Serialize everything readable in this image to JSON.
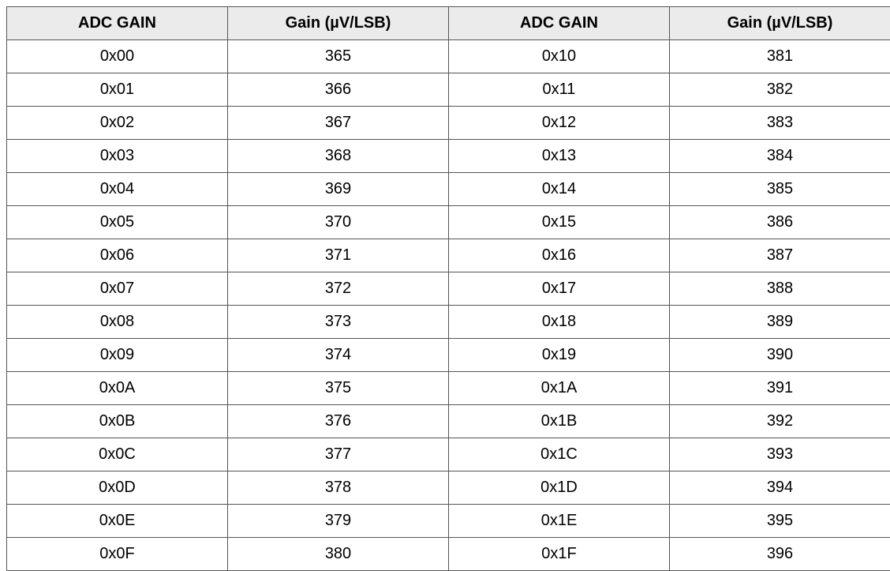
{
  "header_fill": "#ebebeb",
  "headers": [
    "ADC GAIN",
    "Gain (µV/LSB)",
    "ADC GAIN",
    "Gain (µV/LSB)"
  ],
  "rows": [
    [
      "0x00",
      "365",
      "0x10",
      "381"
    ],
    [
      "0x01",
      "366",
      "0x11",
      "382"
    ],
    [
      "0x02",
      "367",
      "0x12",
      "383"
    ],
    [
      "0x03",
      "368",
      "0x13",
      "384"
    ],
    [
      "0x04",
      "369",
      "0x14",
      "385"
    ],
    [
      "0x05",
      "370",
      "0x15",
      "386"
    ],
    [
      "0x06",
      "371",
      "0x16",
      "387"
    ],
    [
      "0x07",
      "372",
      "0x17",
      "388"
    ],
    [
      "0x08",
      "373",
      "0x18",
      "389"
    ],
    [
      "0x09",
      "374",
      "0x19",
      "390"
    ],
    [
      "0x0A",
      "375",
      "0x1A",
      "391"
    ],
    [
      "0x0B",
      "376",
      "0x1B",
      "392"
    ],
    [
      "0x0C",
      "377",
      "0x1C",
      "393"
    ],
    [
      "0x0D",
      "378",
      "0x1D",
      "394"
    ],
    [
      "0x0E",
      "379",
      "0x1E",
      "395"
    ],
    [
      "0x0F",
      "380",
      "0x1F",
      "396"
    ]
  ]
}
